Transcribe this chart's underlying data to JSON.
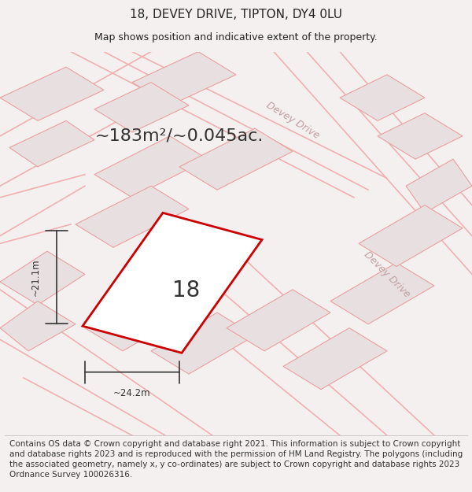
{
  "title_line1": "18, DEVEY DRIVE, TIPTON, DY4 0LU",
  "title_line2": "Map shows position and indicative extent of the property.",
  "area_text": "~183m²/~0.045ac.",
  "number_label": "18",
  "dim_width": "~24.2m",
  "dim_height": "~21.1m",
  "road_label_top": "Devey Drive",
  "road_label_right": "Devey Drive",
  "footer_text": "Contains OS data © Crown copyright and database right 2021. This information is subject to Crown copyright and database rights 2023 and is reproduced with the permission of HM Land Registry. The polygons (including the associated geometry, namely x, y co-ordinates) are subject to Crown copyright and database rights 2023 Ordnance Survey 100026316.",
  "bg_color": "#f5f0f0",
  "map_bg_color": "#ffffff",
  "plot_color_fill": "#ffffff",
  "plot_color_edge": "#cc0000",
  "neighbor_fill": "#e8e0e0",
  "neighbor_edge": "#e8a0a0",
  "road_line_color": "#f0b0b0",
  "title_fontsize": 11,
  "subtitle_fontsize": 9,
  "area_fontsize": 16,
  "number_fontsize": 20,
  "footer_fontsize": 7.5
}
